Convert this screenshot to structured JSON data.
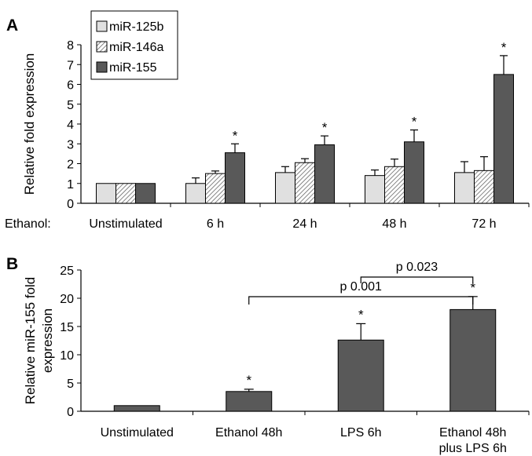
{
  "chart_data": [
    {
      "panel": "A",
      "type": "bar",
      "ylabel": "Relative fold expression",
      "xlabel_prefix": "Ethanol:",
      "ylim": [
        0,
        8
      ],
      "yticks": [
        0,
        1,
        2,
        3,
        4,
        5,
        6,
        7,
        8
      ],
      "categories": [
        "Unstimulated",
        "6 h",
        "24 h",
        "48 h",
        "72 h"
      ],
      "legend_position": "top-left",
      "series": [
        {
          "name": "miR-125b",
          "color": "#e0e0e0",
          "pattern": "solid-light",
          "values": [
            1.0,
            1.0,
            1.55,
            1.4,
            1.55
          ],
          "errors": [
            0,
            0.28,
            0.3,
            0.28,
            0.55
          ],
          "significant": [
            false,
            false,
            false,
            false,
            false
          ]
        },
        {
          "name": "miR-146a",
          "color": "#ffffff",
          "pattern": "hatched",
          "values": [
            1.0,
            1.5,
            2.05,
            1.85,
            1.65
          ],
          "errors": [
            0,
            0.13,
            0.2,
            0.38,
            0.7
          ],
          "significant": [
            false,
            false,
            false,
            false,
            false
          ]
        },
        {
          "name": "miR-155",
          "color": "#595959",
          "pattern": "solid-dark",
          "values": [
            1.0,
            2.55,
            2.95,
            3.1,
            6.5
          ],
          "errors": [
            0,
            0.45,
            0.45,
            0.6,
            0.95
          ],
          "significant": [
            false,
            true,
            true,
            true,
            true
          ]
        }
      ],
      "significance_mark": "*"
    },
    {
      "panel": "B",
      "type": "bar",
      "ylabel_lines": [
        "Relative miR-155 fold",
        "expression"
      ],
      "ylim": [
        0,
        25
      ],
      "yticks": [
        0,
        5,
        10,
        15,
        20,
        25
      ],
      "categories": [
        [
          "Unstimulated"
        ],
        [
          "Ethanol 48h"
        ],
        [
          "LPS 6h"
        ],
        [
          "Ethanol 48h",
          "plus LPS 6h"
        ]
      ],
      "color": "#595959",
      "values": [
        1.0,
        3.5,
        12.6,
        18.0
      ],
      "errors": [
        0,
        0.4,
        2.9,
        2.3
      ],
      "significant": [
        false,
        true,
        true,
        true
      ],
      "significance_mark": "*",
      "comparisons": [
        {
          "from": 1,
          "to": 3,
          "label": "p 0.001"
        },
        {
          "from": 2,
          "to": 3,
          "label": "p 0.023"
        }
      ]
    }
  ]
}
